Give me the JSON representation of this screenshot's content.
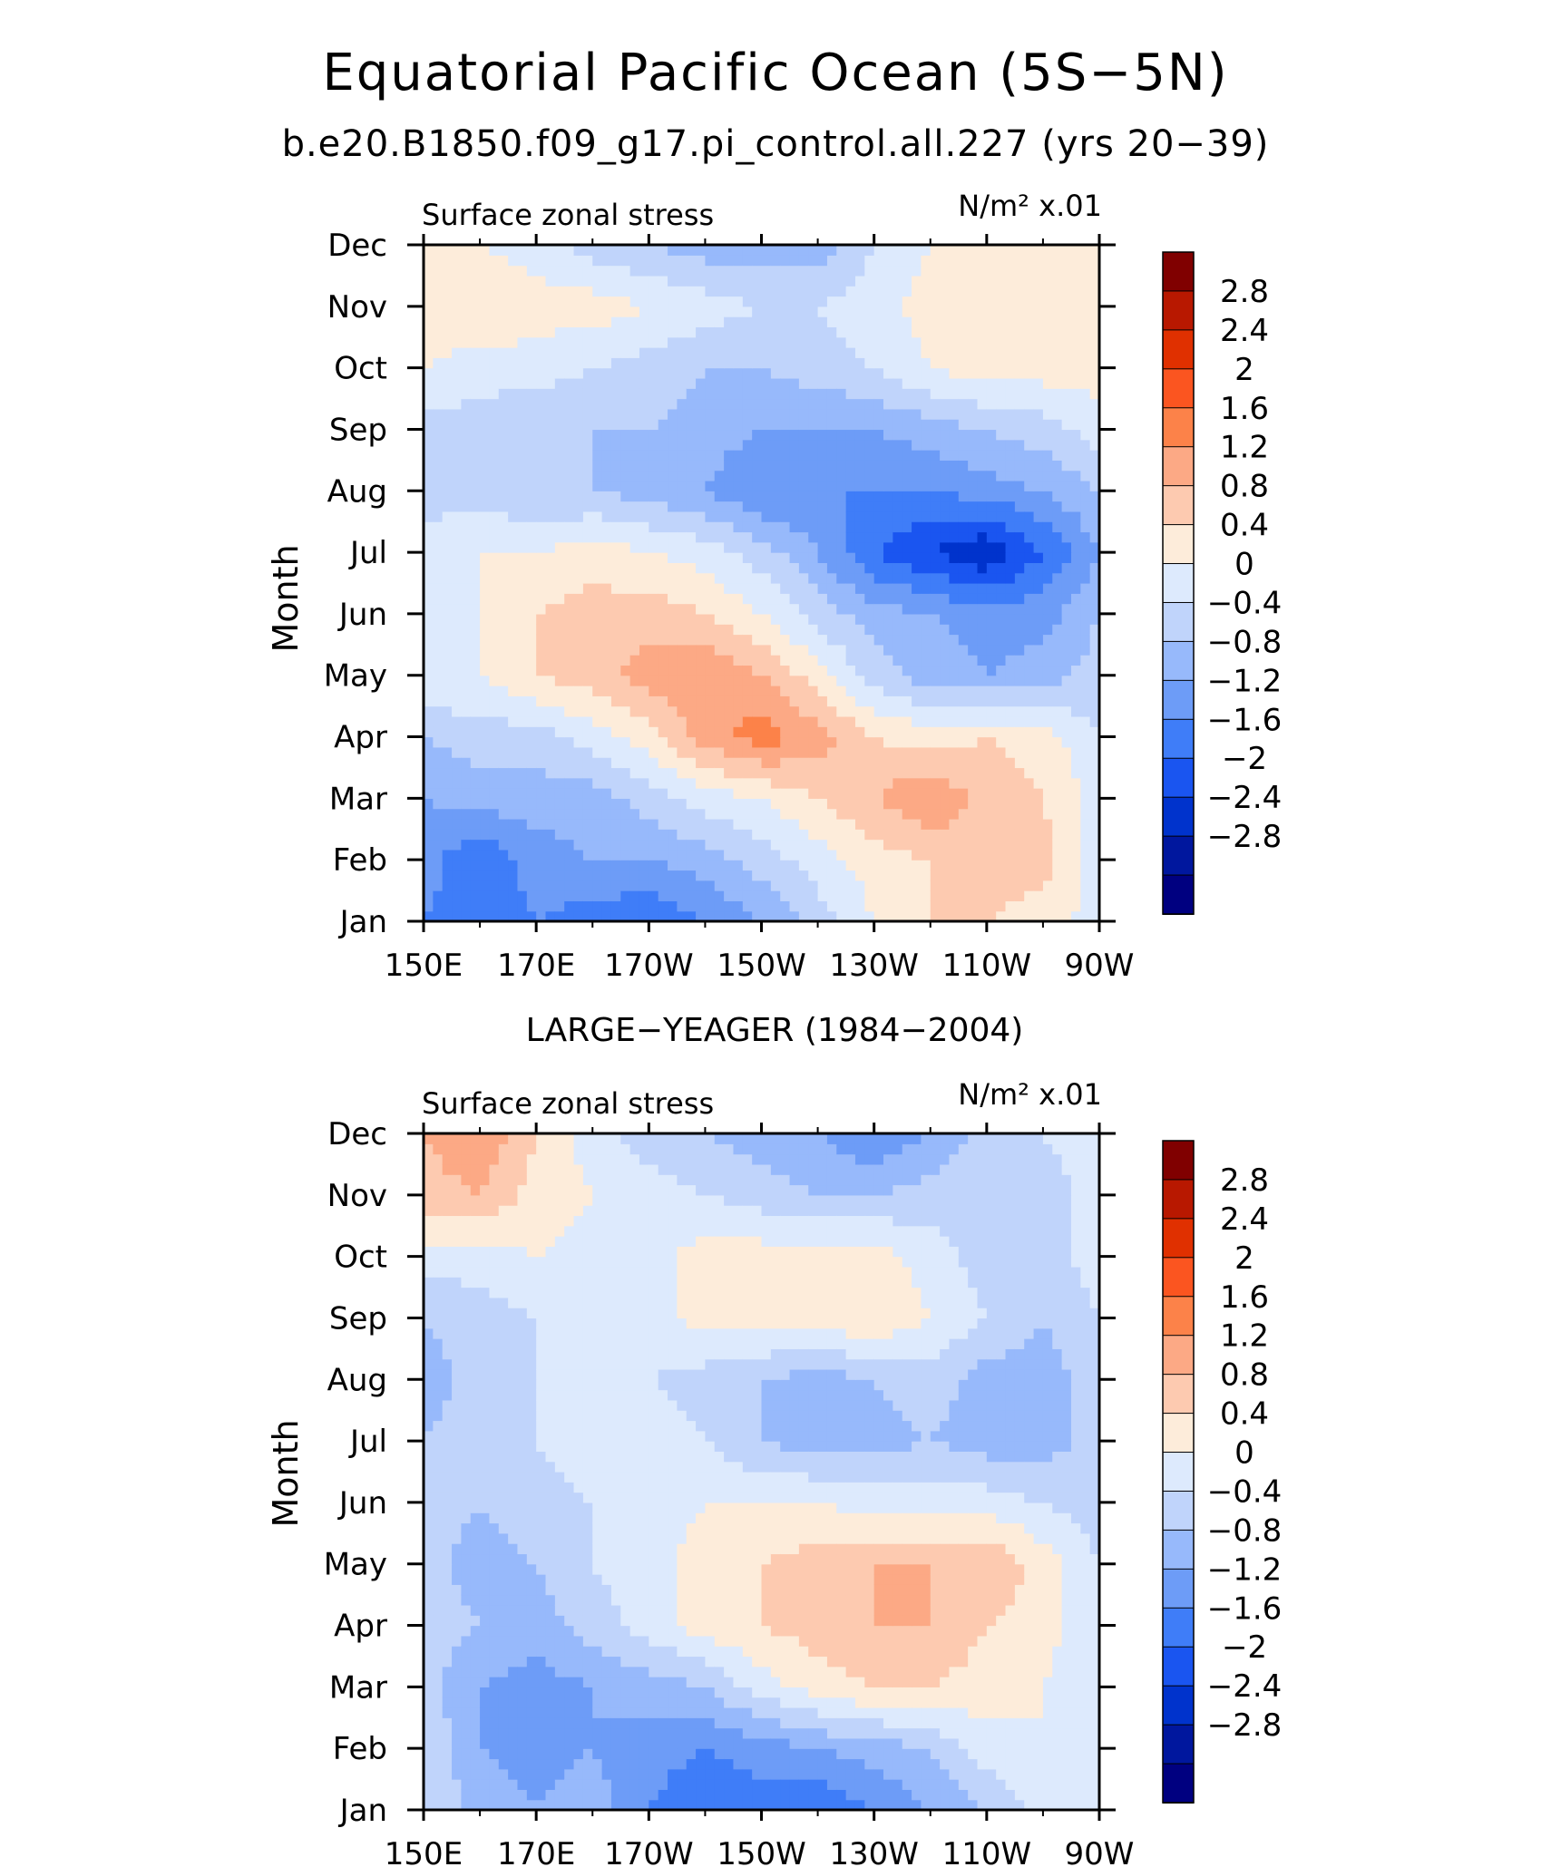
{
  "title": "Equatorial Pacific Ocean (5S−5N)",
  "subtitle": "b.e20.B1850.f09_g17.pi_control.all.227 (yrs 20−39)",
  "chart_data": [
    {
      "type": "heatmap",
      "panel_title": "",
      "left_label": "Surface zonal stress",
      "right_label": "N/m² x.01",
      "ylabel": "Month",
      "xlim": [
        150,
        270
      ],
      "x_ticks": [
        150,
        170,
        190,
        210,
        230,
        250,
        270
      ],
      "x_tick_labels": [
        "150E",
        "170E",
        "170W",
        "150W",
        "130W",
        "110W",
        "90W"
      ],
      "y_ticks": [
        "Jan",
        "Feb",
        "Mar",
        "Apr",
        "May",
        "Jun",
        "Jul",
        "Aug",
        "Sep",
        "Oct",
        "Nov",
        "Dec"
      ],
      "grid": false,
      "x": [
        150,
        160,
        170,
        180,
        190,
        200,
        210,
        220,
        230,
        240,
        250,
        260,
        270
      ],
      "y": [
        "Jan",
        "Feb",
        "Mar",
        "Apr",
        "May",
        "Jun",
        "Jul",
        "Aug",
        "Sep",
        "Oct",
        "Nov",
        "Dec"
      ],
      "z": [
        [
          -1.2,
          -1.4,
          -1.2,
          -1.4,
          -1.6,
          -1.2,
          -0.8,
          -0.2,
          0.4,
          0.8,
          0.8,
          0.6,
          0.2
        ],
        [
          -1.0,
          -1.6,
          -1.0,
          -0.8,
          -0.8,
          -0.6,
          -0.2,
          0.2,
          0.6,
          0.8,
          1.0,
          1.0,
          0.2
        ],
        [
          -0.8,
          -0.6,
          -0.6,
          -0.6,
          -0.2,
          0.2,
          0.4,
          0.8,
          1.2,
          1.6,
          1.0,
          0.8,
          0.2
        ],
        [
          -0.4,
          -0.2,
          -0.2,
          0.2,
          0.6,
          1.4,
          1.8,
          1.4,
          0.8,
          0.6,
          0.8,
          0.6,
          0.0
        ],
        [
          0.4,
          0.4,
          0.8,
          1.0,
          1.4,
          1.6,
          1.2,
          0.6,
          -0.2,
          -0.6,
          -0.8,
          -0.6,
          -0.2
        ],
        [
          0.2,
          0.4,
          0.8,
          1.0,
          1.0,
          0.8,
          0.4,
          -0.2,
          -0.6,
          -0.8,
          -1.0,
          -1.0,
          -0.4
        ],
        [
          0.2,
          0.4,
          0.4,
          0.6,
          0.4,
          0.2,
          -0.2,
          -0.8,
          -1.6,
          -2.0,
          -2.4,
          -1.6,
          -0.8
        ],
        [
          -0.2,
          -0.2,
          -0.4,
          -0.4,
          -0.6,
          -0.8,
          -1.2,
          -1.2,
          -1.2,
          -1.2,
          -1.0,
          -0.8,
          -0.4
        ],
        [
          -0.2,
          -0.2,
          -0.4,
          -0.4,
          -0.4,
          -0.6,
          -0.8,
          -0.8,
          -0.8,
          -0.6,
          -0.4,
          -0.2,
          0.2
        ],
        [
          0.4,
          0.2,
          0.2,
          0.0,
          -0.2,
          -0.4,
          -0.4,
          -0.2,
          0.0,
          0.4,
          0.6,
          0.6,
          0.6
        ],
        [
          0.6,
          0.8,
          0.6,
          0.6,
          0.4,
          0.2,
          0.0,
          0.0,
          0.2,
          0.6,
          0.8,
          0.6,
          0.6
        ],
        [
          0.4,
          0.4,
          0.2,
          -0.2,
          -0.4,
          -0.6,
          -0.6,
          -0.6,
          0.0,
          0.4,
          0.6,
          0.6,
          0.4
        ]
      ],
      "colorbar": {
        "levels": [
          "2.8",
          "2.4",
          "2",
          "1.6",
          "1.2",
          "0.8",
          "0.4",
          "0",
          "−0.4",
          "−0.8",
          "−1.2",
          "−1.6",
          "−2",
          "−2.4",
          "−2.8"
        ]
      }
    },
    {
      "type": "heatmap",
      "panel_title": "LARGE−YEAGER (1984−2004)",
      "left_label": "Surface zonal stress",
      "right_label": "N/m² x.01",
      "ylabel": "Month",
      "xlim": [
        150,
        270
      ],
      "x_ticks": [
        150,
        170,
        190,
        210,
        230,
        250,
        270
      ],
      "x_tick_labels": [
        "150E",
        "170E",
        "170W",
        "150W",
        "130W",
        "110W",
        "90W"
      ],
      "y_ticks": [
        "Jan",
        "Feb",
        "Mar",
        "Apr",
        "May",
        "Jun",
        "Jul",
        "Aug",
        "Sep",
        "Oct",
        "Nov",
        "Dec"
      ],
      "grid": false,
      "x": [
        150,
        160,
        170,
        180,
        190,
        200,
        210,
        220,
        230,
        240,
        250,
        260,
        270
      ],
      "y": [
        "Jan",
        "Feb",
        "Mar",
        "Apr",
        "May",
        "Jun",
        "Jul",
        "Aug",
        "Sep",
        "Oct",
        "Nov",
        "Dec"
      ],
      "z": [
        [
          0.0,
          -0.6,
          -0.8,
          -0.6,
          -1.2,
          -1.6,
          -1.4,
          -1.6,
          -1.2,
          -0.8,
          -0.4,
          0.2,
          0.2
        ],
        [
          0.0,
          -0.8,
          -1.0,
          -0.8,
          -1.0,
          -1.2,
          -1.0,
          -0.8,
          -0.6,
          -0.4,
          0.2,
          0.4,
          0.2
        ],
        [
          -0.2,
          -0.8,
          -1.0,
          -0.8,
          -0.6,
          -0.4,
          0.2,
          0.6,
          0.8,
          0.8,
          0.6,
          0.4,
          0.0
        ],
        [
          -0.2,
          -0.4,
          -0.6,
          -0.2,
          0.2,
          0.6,
          0.8,
          1.0,
          1.2,
          1.2,
          0.8,
          0.6,
          0.0
        ],
        [
          -0.2,
          -0.6,
          -0.4,
          0.0,
          0.2,
          0.6,
          0.8,
          1.0,
          1.2,
          1.2,
          1.2,
          0.6,
          0.0
        ],
        [
          -0.2,
          -0.4,
          -0.2,
          0.0,
          0.2,
          0.4,
          0.4,
          0.4,
          0.2,
          0.2,
          0.2,
          0.0,
          -0.2
        ],
        [
          -0.4,
          -0.2,
          0.0,
          0.2,
          0.2,
          0.0,
          -0.4,
          -0.6,
          -0.6,
          -0.4,
          -0.6,
          -0.6,
          -0.2
        ],
        [
          -0.6,
          -0.2,
          0.0,
          0.2,
          0.0,
          -0.2,
          -0.4,
          -0.6,
          -0.4,
          -0.2,
          -0.6,
          -0.6,
          -0.2
        ],
        [
          -0.4,
          -0.2,
          0.0,
          0.2,
          0.2,
          0.6,
          0.6,
          0.6,
          0.8,
          0.4,
          0.0,
          -0.4,
          0.0
        ],
        [
          0.2,
          0.2,
          0.4,
          0.2,
          0.2,
          0.6,
          0.6,
          0.6,
          0.6,
          0.2,
          -0.2,
          -0.2,
          0.2
        ],
        [
          1.0,
          1.2,
          0.6,
          0.4,
          0.2,
          0.0,
          -0.2,
          -0.4,
          -0.4,
          -0.2,
          0.0,
          -0.2,
          0.2
        ],
        [
          1.2,
          1.6,
          0.8,
          0.2,
          -0.2,
          -0.4,
          -0.6,
          -0.8,
          -1.2,
          -0.8,
          -0.2,
          0.0,
          0.2
        ]
      ],
      "colorbar": {
        "levels": [
          "2.8",
          "2.4",
          "2",
          "1.6",
          "1.2",
          "0.8",
          "0.4",
          "0",
          "−0.4",
          "−0.8",
          "−1.2",
          "−1.6",
          "−2",
          "−2.4",
          "−2.8"
        ]
      }
    }
  ],
  "colors": {
    "scale": [
      "#000080",
      "#00179e",
      "#0033cc",
      "#1a55f0",
      "#3f7df8",
      "#6d9cf7",
      "#97b9fb",
      "#c0d4fb",
      "#ddeafd",
      "#fdecda",
      "#fdcab0",
      "#fca985",
      "#fc8249",
      "#fb5520",
      "#e03000",
      "#b81800",
      "#800000"
    ],
    "scale_min": -3.2,
    "scale_step": 0.4
  }
}
